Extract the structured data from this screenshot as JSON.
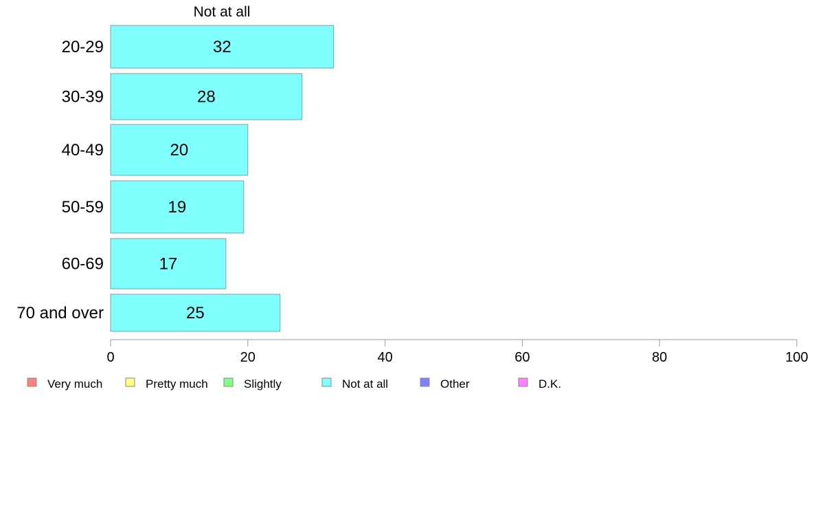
{
  "chart_data": {
    "type": "bar",
    "orientation": "horizontal",
    "series_title": "Not at all",
    "categories": [
      "20-29",
      "30-39",
      "40-49",
      "50-59",
      "60-69",
      "70 and over"
    ],
    "series": [
      {
        "name": "Not at all",
        "values": [
          32.5,
          27.9,
          20.0,
          19.4,
          16.8,
          24.7
        ],
        "labels": [
          "32",
          "28",
          "20",
          "19",
          "17",
          "25"
        ],
        "color": "#80ffff"
      }
    ],
    "xlim": [
      0,
      100
    ],
    "xticks": [
      0,
      20,
      40,
      60,
      80,
      100
    ],
    "grid": false,
    "legend_position": "bottom",
    "legend": [
      {
        "label": "Very much",
        "color": "#ff8080"
      },
      {
        "label": "Pretty much",
        "color": "#ffff80"
      },
      {
        "label": "Slightly",
        "color": "#80ff80"
      },
      {
        "label": "Not at all",
        "color": "#80ffff"
      },
      {
        "label": "Other",
        "color": "#8080ff"
      },
      {
        "label": "D.K.",
        "color": "#ff80ff"
      }
    ]
  }
}
